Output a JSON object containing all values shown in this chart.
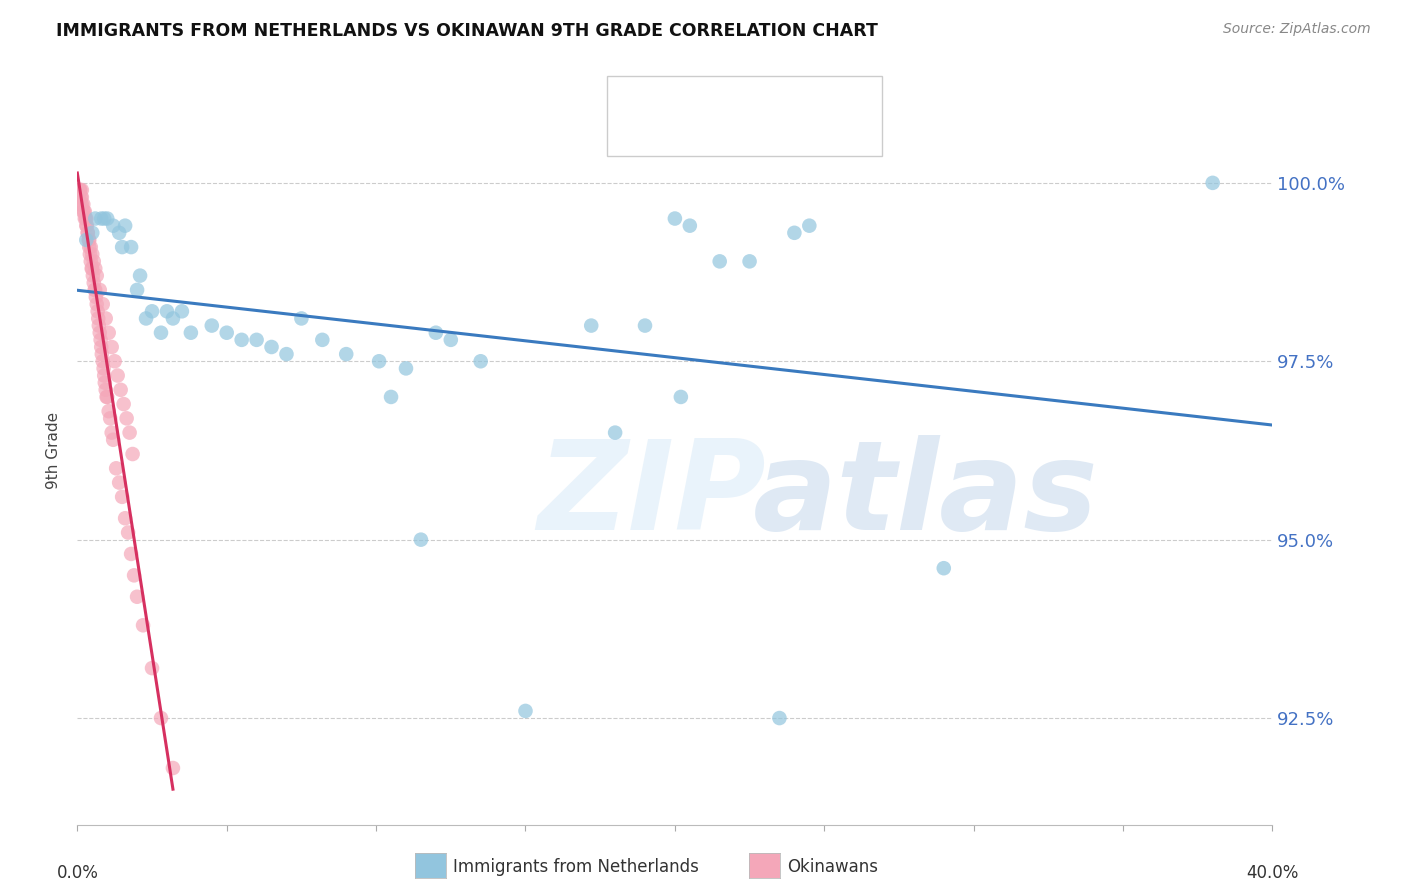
{
  "title": "IMMIGRANTS FROM NETHERLANDS VS OKINAWAN 9TH GRADE CORRELATION CHART",
  "source": "Source: ZipAtlas.com",
  "ylabel": "9th Grade",
  "ytick_values": [
    92.5,
    95.0,
    97.5,
    100.0
  ],
  "xlim": [
    0.0,
    40.0
  ],
  "ylim": [
    91.0,
    101.5
  ],
  "blue_color": "#92c5de",
  "pink_color": "#f4a7b9",
  "trendline_blue_color": "#3a7abf",
  "trendline_pink_color": "#d63060",
  "watermark_zip": "ZIP",
  "watermark_atlas": "atlas",
  "blue_scatter_x": [
    0.3,
    0.5,
    0.6,
    0.8,
    0.9,
    1.0,
    1.2,
    1.4,
    1.5,
    1.6,
    1.8,
    2.0,
    2.1,
    2.3,
    2.5,
    2.8,
    3.0,
    3.2,
    3.5,
    3.8,
    4.5,
    5.0,
    5.5,
    6.0,
    6.5,
    7.0,
    7.5,
    8.2,
    9.0,
    10.1,
    10.5,
    11.0,
    12.0,
    12.5,
    13.5,
    17.2,
    19.0,
    20.0,
    20.5,
    21.5,
    22.5,
    24.0,
    24.5,
    20.2,
    11.5,
    18.0,
    29.0,
    38.0,
    23.5,
    15.0
  ],
  "blue_scatter_y": [
    99.2,
    99.3,
    99.5,
    99.5,
    99.5,
    99.5,
    99.4,
    99.3,
    99.1,
    99.4,
    99.1,
    98.5,
    98.7,
    98.1,
    98.2,
    97.9,
    98.2,
    98.1,
    98.2,
    97.9,
    98.0,
    97.9,
    97.8,
    97.8,
    97.7,
    97.6,
    98.1,
    97.8,
    97.6,
    97.5,
    97.0,
    97.4,
    97.9,
    97.8,
    97.5,
    98.0,
    98.0,
    99.5,
    99.4,
    98.9,
    98.9,
    99.3,
    99.4,
    97.0,
    95.0,
    96.5,
    94.6,
    100.0,
    92.5,
    92.6
  ],
  "pink_scatter_x": [
    0.05,
    0.08,
    0.1,
    0.1,
    0.12,
    0.15,
    0.15,
    0.18,
    0.2,
    0.22,
    0.25,
    0.28,
    0.3,
    0.32,
    0.35,
    0.38,
    0.4,
    0.42,
    0.45,
    0.48,
    0.5,
    0.5,
    0.52,
    0.55,
    0.58,
    0.6,
    0.62,
    0.65,
    0.68,
    0.7,
    0.72,
    0.75,
    0.78,
    0.8,
    0.82,
    0.85,
    0.88,
    0.9,
    0.92,
    0.95,
    0.98,
    1.0,
    1.05,
    1.1,
    1.15,
    1.2,
    1.3,
    1.4,
    1.5,
    1.6,
    1.7,
    1.8,
    1.9,
    2.0,
    2.2,
    2.5,
    0.15,
    0.25,
    0.35,
    0.45,
    0.55,
    0.65,
    0.75,
    0.85,
    0.95,
    1.05,
    1.15,
    1.25,
    1.35,
    1.45,
    1.55,
    1.65,
    1.75,
    1.85,
    0.3,
    0.4,
    0.6,
    2.8,
    3.2
  ],
  "pink_scatter_y": [
    99.8,
    99.9,
    99.7,
    99.9,
    99.8,
    99.7,
    99.9,
    99.6,
    99.7,
    99.6,
    99.6,
    99.5,
    99.4,
    99.4,
    99.3,
    99.2,
    99.1,
    99.0,
    98.9,
    98.8,
    98.8,
    99.0,
    98.7,
    98.6,
    98.5,
    98.5,
    98.4,
    98.3,
    98.2,
    98.1,
    98.0,
    97.9,
    97.8,
    97.7,
    97.6,
    97.5,
    97.4,
    97.3,
    97.2,
    97.1,
    97.0,
    97.0,
    96.8,
    96.7,
    96.5,
    96.4,
    96.0,
    95.8,
    95.6,
    95.3,
    95.1,
    94.8,
    94.5,
    94.2,
    93.8,
    93.2,
    99.8,
    99.5,
    99.3,
    99.1,
    98.9,
    98.7,
    98.5,
    98.3,
    98.1,
    97.9,
    97.7,
    97.5,
    97.3,
    97.1,
    96.9,
    96.7,
    96.5,
    96.2,
    99.5,
    99.2,
    98.8,
    92.5,
    91.8
  ]
}
